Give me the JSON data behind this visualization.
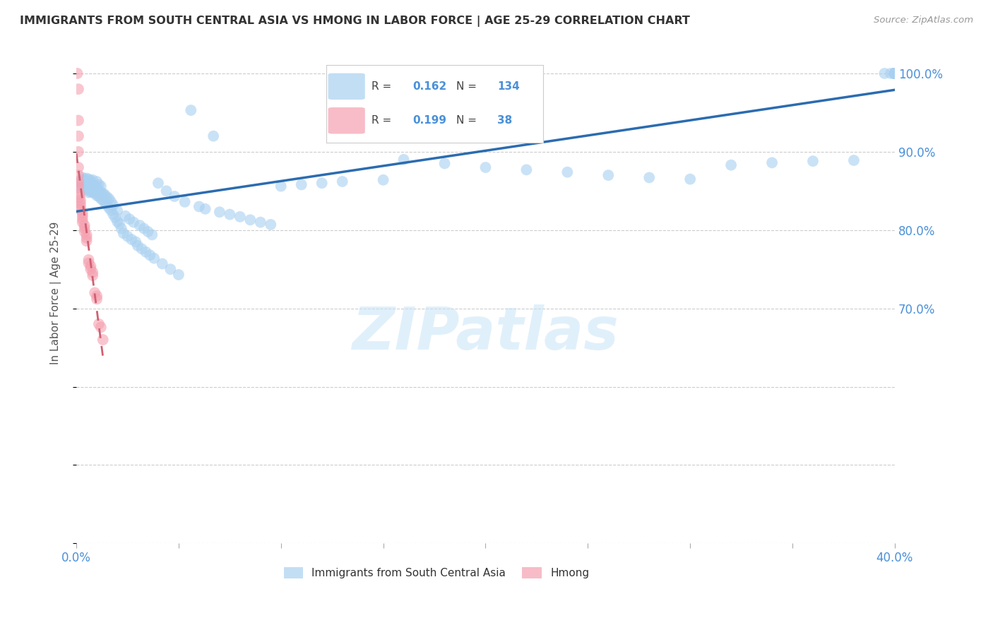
{
  "title": "IMMIGRANTS FROM SOUTH CENTRAL ASIA VS HMONG IN LABOR FORCE | AGE 25-29 CORRELATION CHART",
  "source": "Source: ZipAtlas.com",
  "ylabel": "In Labor Force | Age 25-29",
  "xlim": [
    0.0,
    0.4
  ],
  "ylim": [
    0.4,
    1.04
  ],
  "legend_R1": "0.162",
  "legend_N1": "134",
  "legend_R2": "0.199",
  "legend_N2": "38",
  "blue_color": "#A8D0F0",
  "pink_color": "#F5A0B0",
  "trendline_blue": "#2B6CB0",
  "trendline_pink": "#D06070",
  "axis_color": "#4A90D9",
  "grid_color": "#CCCCCC",
  "title_color": "#333333",
  "source_color": "#999999",
  "watermark": "ZIPatlas",
  "blue_x": [
    0.001,
    0.002,
    0.002,
    0.003,
    0.003,
    0.003,
    0.004,
    0.004,
    0.004,
    0.004,
    0.005,
    0.005,
    0.005,
    0.005,
    0.005,
    0.006,
    0.006,
    0.006,
    0.006,
    0.006,
    0.007,
    0.007,
    0.007,
    0.007,
    0.008,
    0.008,
    0.008,
    0.008,
    0.009,
    0.009,
    0.01,
    0.01,
    0.01,
    0.01,
    0.011,
    0.011,
    0.011,
    0.012,
    0.012,
    0.012,
    0.013,
    0.013,
    0.014,
    0.014,
    0.015,
    0.015,
    0.016,
    0.016,
    0.017,
    0.017,
    0.018,
    0.018,
    0.019,
    0.02,
    0.02,
    0.021,
    0.022,
    0.023,
    0.024,
    0.025,
    0.026,
    0.027,
    0.028,
    0.029,
    0.03,
    0.031,
    0.032,
    0.033,
    0.034,
    0.035,
    0.036,
    0.037,
    0.038,
    0.04,
    0.042,
    0.044,
    0.046,
    0.048,
    0.05,
    0.053,
    0.056,
    0.06,
    0.063,
    0.067,
    0.07,
    0.075,
    0.08,
    0.085,
    0.09,
    0.095,
    0.1,
    0.11,
    0.12,
    0.13,
    0.15,
    0.16,
    0.18,
    0.2,
    0.22,
    0.24,
    0.26,
    0.28,
    0.3,
    0.32,
    0.34,
    0.36,
    0.38,
    0.395,
    0.398,
    0.4,
    0.4,
    0.4,
    0.4,
    0.4,
    0.4,
    0.4,
    0.4,
    0.4,
    0.4,
    0.4,
    0.4,
    0.4,
    0.4,
    0.4,
    0.4,
    0.4,
    0.4,
    0.4,
    0.4,
    0.4,
    0.4,
    0.4,
    0.4,
    0.4
  ],
  "blue_y": [
    0.855,
    0.86,
    0.862,
    0.858,
    0.863,
    0.867,
    0.854,
    0.857,
    0.86,
    0.865,
    0.851,
    0.854,
    0.858,
    0.862,
    0.866,
    0.848,
    0.852,
    0.856,
    0.86,
    0.865,
    0.849,
    0.852,
    0.857,
    0.863,
    0.848,
    0.853,
    0.858,
    0.864,
    0.847,
    0.855,
    0.844,
    0.849,
    0.855,
    0.862,
    0.843,
    0.85,
    0.858,
    0.84,
    0.848,
    0.856,
    0.838,
    0.847,
    0.835,
    0.845,
    0.832,
    0.842,
    0.828,
    0.84,
    0.825,
    0.836,
    0.82,
    0.832,
    0.816,
    0.811,
    0.825,
    0.808,
    0.802,
    0.796,
    0.818,
    0.792,
    0.814,
    0.788,
    0.81,
    0.785,
    0.78,
    0.806,
    0.776,
    0.802,
    0.772,
    0.798,
    0.768,
    0.794,
    0.764,
    0.86,
    0.757,
    0.85,
    0.75,
    0.843,
    0.743,
    0.836,
    0.953,
    0.83,
    0.827,
    0.92,
    0.823,
    0.82,
    0.817,
    0.813,
    0.81,
    0.807,
    0.856,
    0.858,
    0.86,
    0.862,
    0.864,
    0.89,
    0.885,
    0.88,
    0.877,
    0.874,
    0.87,
    0.867,
    0.865,
    0.883,
    0.886,
    0.888,
    0.889,
    1.0,
    1.0,
    1.0,
    1.0,
    1.0,
    1.0,
    1.0,
    1.0,
    1.0,
    1.0,
    1.0,
    1.0,
    1.0,
    1.0,
    1.0,
    1.0,
    1.0,
    1.0,
    1.0,
    1.0,
    1.0,
    1.0,
    1.0,
    1.0,
    1.0,
    1.0,
    1.0
  ],
  "pink_x": [
    0.0005,
    0.001,
    0.001,
    0.001,
    0.001,
    0.001,
    0.001,
    0.001,
    0.001,
    0.001,
    0.0015,
    0.0015,
    0.002,
    0.002,
    0.002,
    0.002,
    0.003,
    0.003,
    0.003,
    0.003,
    0.004,
    0.004,
    0.004,
    0.005,
    0.005,
    0.005,
    0.006,
    0.006,
    0.007,
    0.007,
    0.008,
    0.008,
    0.009,
    0.01,
    0.01,
    0.011,
    0.012,
    0.013
  ],
  "pink_y": [
    1.0,
    0.98,
    0.94,
    0.92,
    0.9,
    0.88,
    0.87,
    0.862,
    0.858,
    0.854,
    0.846,
    0.842,
    0.838,
    0.834,
    0.83,
    0.826,
    0.822,
    0.818,
    0.814,
    0.81,
    0.806,
    0.802,
    0.798,
    0.794,
    0.79,
    0.786,
    0.762,
    0.758,
    0.754,
    0.75,
    0.746,
    0.742,
    0.72,
    0.716,
    0.712,
    0.68,
    0.676,
    0.66
  ]
}
